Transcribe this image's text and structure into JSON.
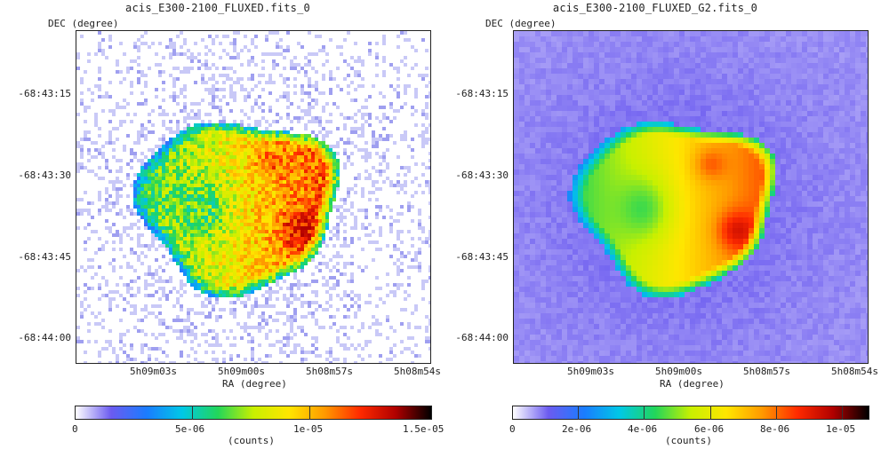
{
  "panels": [
    {
      "title": "acis_E300-2100_FLUXED.fits_0",
      "y_axis_label": "DEC (degree)",
      "x_axis_label": "RA (degree)",
      "y_ticks": [
        "-68:43:15",
        "-68:43:30",
        "-68:43:45",
        "-68:44:00"
      ],
      "x_ticks": [
        "5h09m03s",
        "5h09m00s",
        "5h08m57s",
        "5h08m54s"
      ],
      "colorbar_ticks": [
        "0",
        "5e-06",
        "1e-05",
        "1.5e-05"
      ],
      "colorbar_unit": "(counts)"
    },
    {
      "title": "acis_E300-2100_FLUXED_G2.fits_0",
      "y_axis_label": "DEC (degree)",
      "x_axis_label": "RA (degree)",
      "y_ticks": [
        "-68:43:15",
        "-68:43:30",
        "-68:43:45",
        "-68:44:00"
      ],
      "x_ticks": [
        "5h09m03s",
        "5h09m00s",
        "5h08m57s",
        "5h08m54s"
      ],
      "colorbar_ticks": [
        "0",
        "2e-06",
        "4e-06",
        "6e-06",
        "8e-06",
        "1e-05"
      ],
      "colorbar_unit": "(counts)"
    }
  ],
  "colormap": [
    "#ffffff",
    "#6b5bf0",
    "#1a7cff",
    "#00c8e6",
    "#22d65a",
    "#c8f000",
    "#ffe600",
    "#ff9a00",
    "#ff2a00",
    "#b00000",
    "#000000"
  ]
}
